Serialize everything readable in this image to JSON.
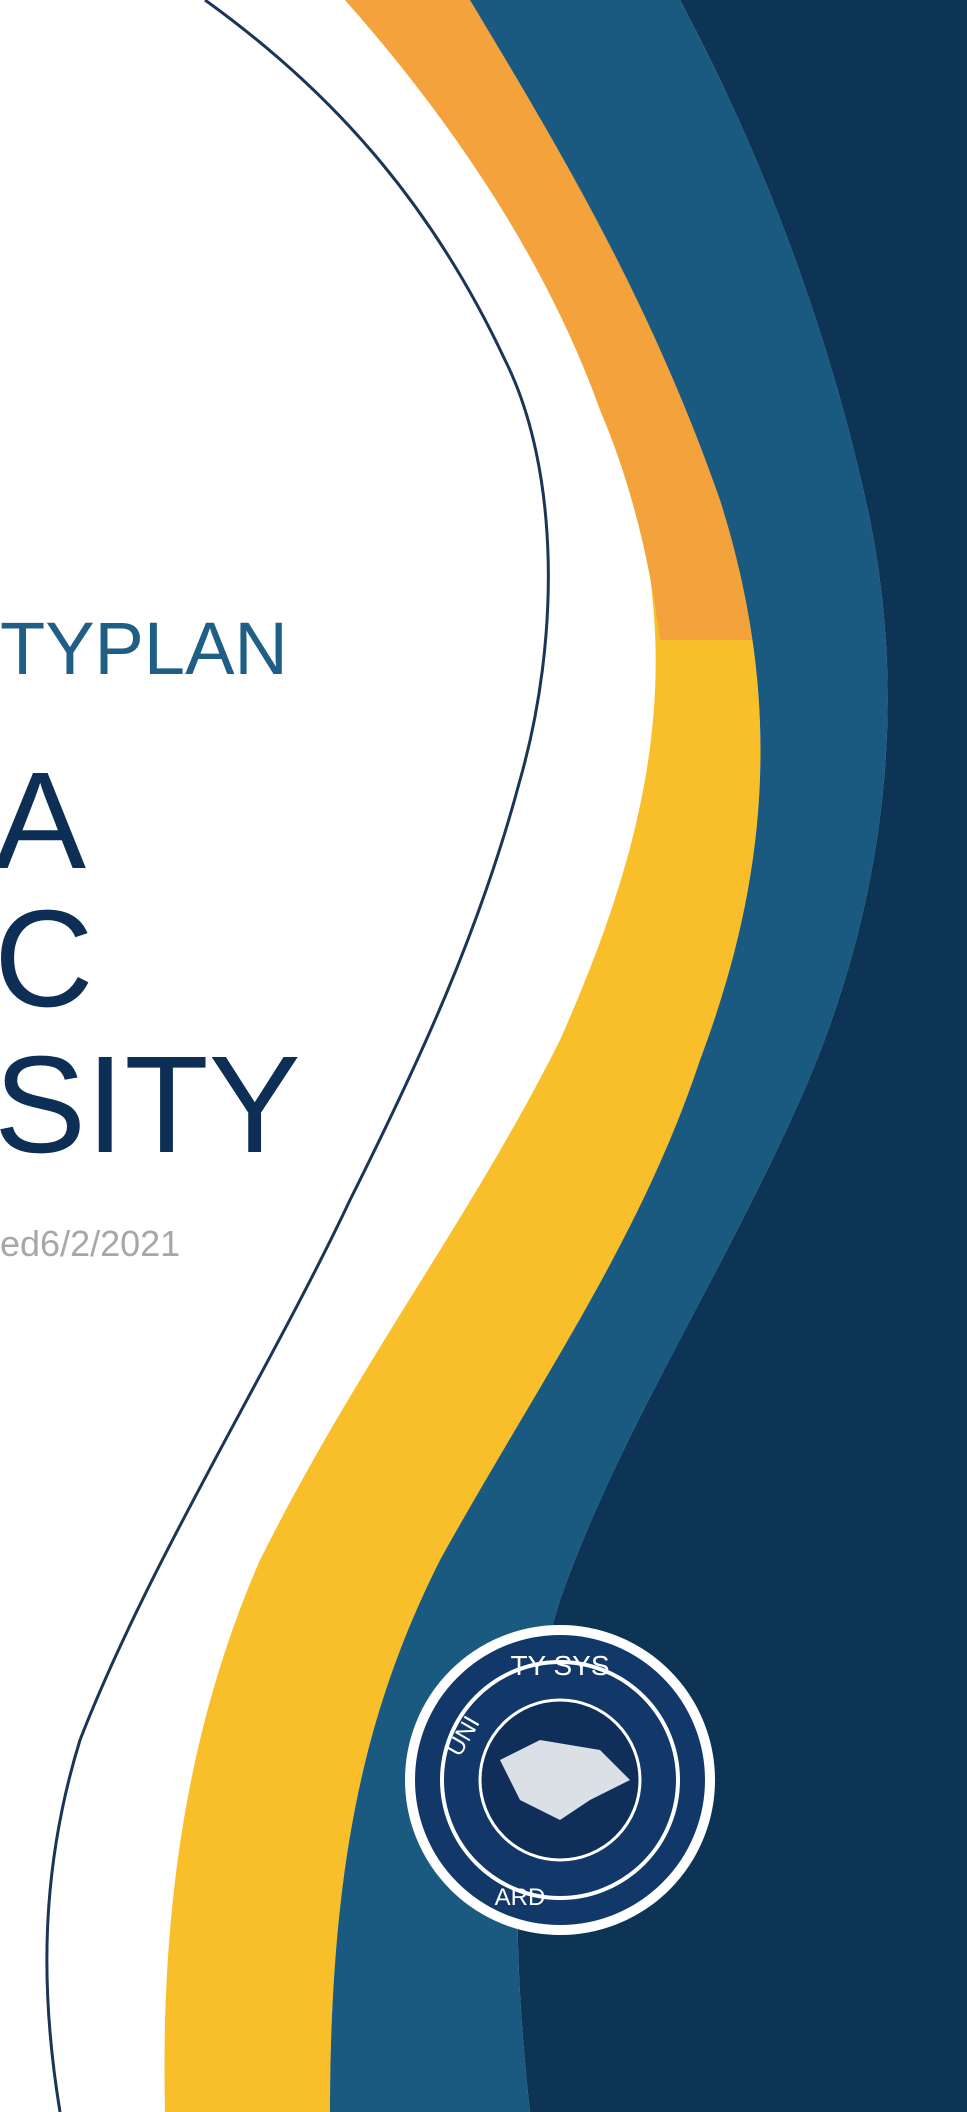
{
  "cover": {
    "subtitle": "TYPLAN",
    "title_lines": [
      "A",
      "C",
      "SITY"
    ],
    "updated": "ed6/2/2021"
  },
  "seal": {
    "text_top": "TY SYS",
    "text_left": "UNI",
    "text_bottom": "ARD"
  },
  "colors": {
    "navy": "#0d3355",
    "teal": "#1b5a80",
    "gold": "#f9bf2a",
    "orange": "#f4a23c",
    "outline": "#1a3556",
    "subtitle_color": "#1f5f86",
    "title_color": "#0d2f55",
    "date_color": "#a7a7a7"
  }
}
